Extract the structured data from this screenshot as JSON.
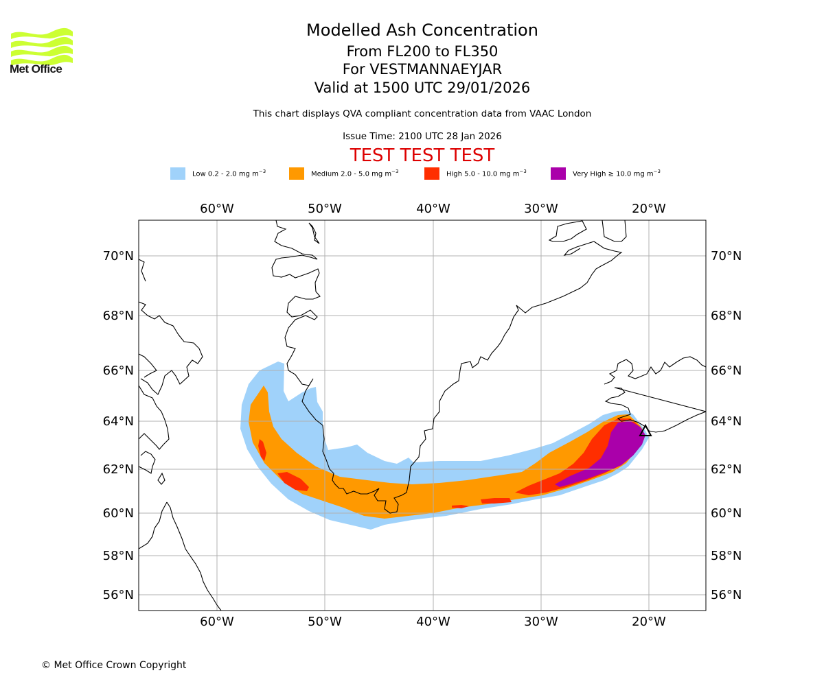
{
  "brand": {
    "logo_icon": "met-office-wave-logo-icon",
    "logo_text": "Met Office",
    "logo_color": "#ccff33"
  },
  "header": {
    "title": "Modelled Ash Concentration",
    "flight_levels": "From FL200 to FL350",
    "volcano": "For VESTMANNAEYJAR",
    "valid_time": "Valid at 1500 UTC 29/01/2026",
    "description": "This chart displays QVA compliant concentration data from VAAC London",
    "issue_time": "Issue Time: 2100 UTC 28 Jan 2026",
    "test_banner": "TEST TEST TEST"
  },
  "legend": [
    {
      "label": "Low 0.2 - 2.0 mg m",
      "unit_exp": "−3",
      "color": "#a0d2fa"
    },
    {
      "label": "Medium 2.0 - 5.0 mg m",
      "unit_exp": "−3",
      "color": "#ff9900"
    },
    {
      "label": "High 5.0 - 10.0 mg m",
      "unit_exp": "−3",
      "color": "#ff2e00"
    },
    {
      "label": "Very High ≥ 10.0 mg m",
      "unit_exp": "−3",
      "color": "#aa00aa"
    }
  ],
  "map": {
    "lon_ticks": [
      "60°W",
      "50°W",
      "40°W",
      "30°W",
      "20°W"
    ],
    "lat_ticks": [
      "70°N",
      "68°N",
      "66°N",
      "64°N",
      "62°N",
      "60°N",
      "58°N",
      "56°N"
    ],
    "lon_values": [
      -60,
      -50,
      -40,
      -30,
      -20
    ],
    "lat_values": [
      70,
      68,
      66,
      64,
      62,
      60,
      58,
      56
    ],
    "gridline_color": "#b0b0b0",
    "volcano_marker_icon": "volcano-triangle-icon",
    "ash_plume_levels": [
      "Low",
      "Medium",
      "High",
      "Very High"
    ]
  },
  "footer": {
    "copyright": "© Met Office Crown Copyright"
  }
}
